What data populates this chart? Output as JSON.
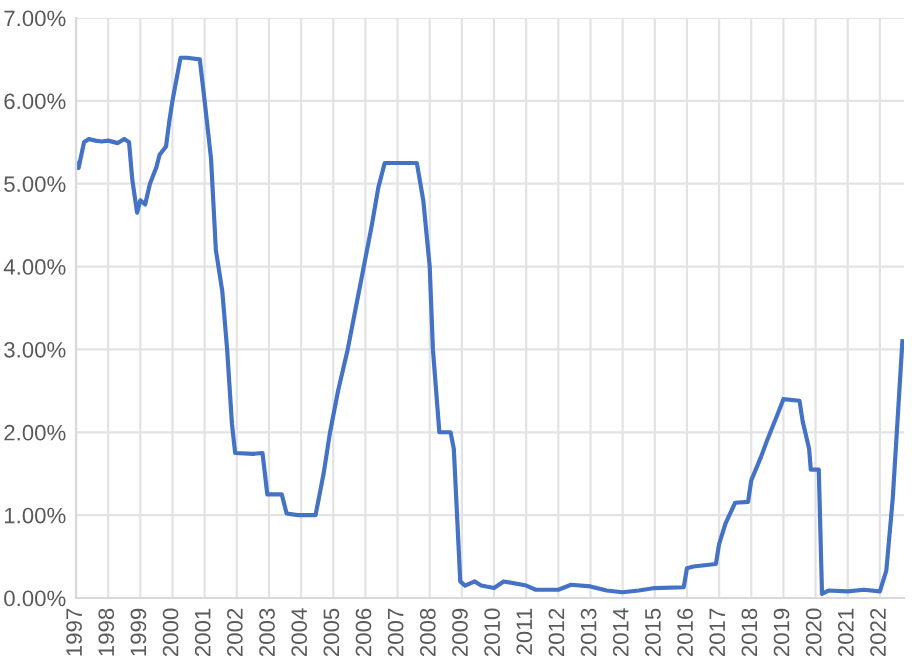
{
  "chart_data": {
    "type": "line",
    "x": [
      1997.0,
      1997.08,
      1997.25,
      1997.4,
      1997.6,
      1997.8,
      1998.0,
      1998.3,
      1998.5,
      1998.65,
      1998.75,
      1998.9,
      1999.0,
      1999.15,
      1999.3,
      1999.5,
      1999.6,
      1999.8,
      1999.9,
      2000.0,
      2000.25,
      2000.45,
      2000.85,
      2001.0,
      2001.2,
      2001.35,
      2001.55,
      2001.7,
      2001.85,
      2001.95,
      2002.5,
      2002.8,
      2002.95,
      2003.4,
      2003.55,
      2003.9,
      2004.45,
      2004.7,
      2004.9,
      2005.15,
      2005.45,
      2005.7,
      2005.95,
      2006.2,
      2006.4,
      2006.6,
      2007.6,
      2007.8,
      2008.0,
      2008.1,
      2008.3,
      2008.65,
      2008.75,
      2008.95,
      2009.1,
      2009.4,
      2009.6,
      2010.0,
      2010.3,
      2011.0,
      2011.3,
      2012.0,
      2012.4,
      2013.0,
      2013.5,
      2014.0,
      2014.5,
      2015.0,
      2015.9,
      2016.0,
      2016.2,
      2016.9,
      2017.0,
      2017.2,
      2017.5,
      2017.9,
      2018.0,
      2018.3,
      2018.5,
      2018.8,
      2019.0,
      2019.5,
      2019.6,
      2019.8,
      2019.85,
      2020.1,
      2020.2,
      2020.4,
      2021.0,
      2021.5,
      2022.0,
      2022.2,
      2022.4,
      2022.7
    ],
    "values": [
      5.25,
      5.19,
      5.5,
      5.54,
      5.52,
      5.51,
      5.52,
      5.49,
      5.54,
      5.5,
      5.05,
      4.65,
      4.8,
      4.75,
      5.0,
      5.2,
      5.35,
      5.45,
      5.75,
      6.0,
      6.52,
      6.52,
      6.5,
      6.0,
      5.3,
      4.2,
      3.7,
      3.0,
      2.1,
      1.75,
      1.74,
      1.75,
      1.25,
      1.25,
      1.02,
      1.0,
      1.0,
      1.5,
      2.0,
      2.5,
      3.0,
      3.5,
      4.0,
      4.5,
      4.95,
      5.25,
      5.25,
      4.8,
      4.0,
      3.0,
      2.0,
      2.0,
      1.8,
      0.2,
      0.15,
      0.2,
      0.15,
      0.12,
      0.2,
      0.15,
      0.1,
      0.1,
      0.16,
      0.14,
      0.09,
      0.07,
      0.09,
      0.12,
      0.13,
      0.36,
      0.38,
      0.41,
      0.65,
      0.9,
      1.15,
      1.16,
      1.42,
      1.7,
      1.91,
      2.2,
      2.4,
      2.38,
      2.13,
      1.8,
      1.55,
      1.55,
      0.05,
      0.09,
      0.08,
      0.1,
      0.08,
      0.33,
      1.2,
      3.1
    ],
    "color": "#4472c4",
    "xlim": [
      1997,
      2022.75
    ],
    "xticks": [
      1997,
      1998,
      1999,
      2000,
      2001,
      2002,
      2003,
      2004,
      2005,
      2006,
      2007,
      2008,
      2009,
      2010,
      2011,
      2012,
      2013,
      2014,
      2015,
      2016,
      2017,
      2018,
      2019,
      2020,
      2021,
      2022
    ],
    "ylim": [
      0,
      7
    ],
    "yticks": [
      {
        "value": 0,
        "label": "0.00%"
      },
      {
        "value": 1,
        "label": "1.00%"
      },
      {
        "value": 2,
        "label": "2.00%"
      },
      {
        "value": 3,
        "label": "3.00%"
      },
      {
        "value": 4,
        "label": "4.00%"
      },
      {
        "value": 5,
        "label": "5.00%"
      },
      {
        "value": 6,
        "label": "6.00%"
      },
      {
        "value": 7,
        "label": "7.00%"
      }
    ],
    "grid": true,
    "legend": false,
    "marker": "none",
    "line_style": "solid"
  }
}
